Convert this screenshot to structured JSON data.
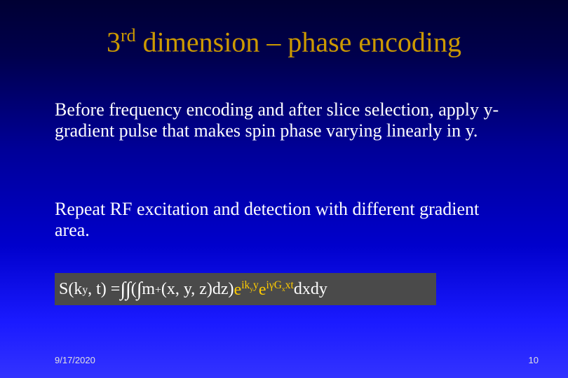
{
  "colors": {
    "bg_gradient_top": "#000033",
    "bg_gradient_mid1": "#000099",
    "bg_gradient_mid2": "#0000cc",
    "bg_gradient_bottom": "#3333ff",
    "title_color": "#cc9900",
    "body_text_color": "#ffffff",
    "equation_bg": "#4a4a4a",
    "equation_highlight": "#ffcc00",
    "footer_color": "#e0e0e0"
  },
  "typography": {
    "title_fontsize": 40,
    "body_fontsize": 26,
    "equation_fontsize": 24,
    "footer_fontsize": 13,
    "font_family": "Times New Roman"
  },
  "title": {
    "ordinal": "3",
    "ordinal_sup": "rd",
    "rest": " dimension – phase encoding"
  },
  "para1": "Before frequency encoding and after slice selection, apply y-gradient pulse that makes spin phase varying linearly in y.",
  "para2": "Repeat RF excitation and detection with different gradient area.",
  "equation": {
    "lhs_S": "S(k",
    "lhs_sub": "y",
    "lhs_rest": ", t) = ",
    "int1": "∫",
    "int2": "∫",
    "openparen": " (",
    "int3": "∫",
    "m": " m",
    "m_sub": "+",
    "m_args": "(x, y, z)dz)",
    "e1": "e",
    "e1_sup_pre": "ik",
    "e1_sup_sub": "y",
    "e1_sup_post": "y",
    "e2": "e",
    "e2_sup_pre": "iγG",
    "e2_sup_sub": "x",
    "e2_sup_post": "xt",
    "tail": "dxdy"
  },
  "footer": {
    "date": "9/17/2020",
    "page": "10"
  }
}
